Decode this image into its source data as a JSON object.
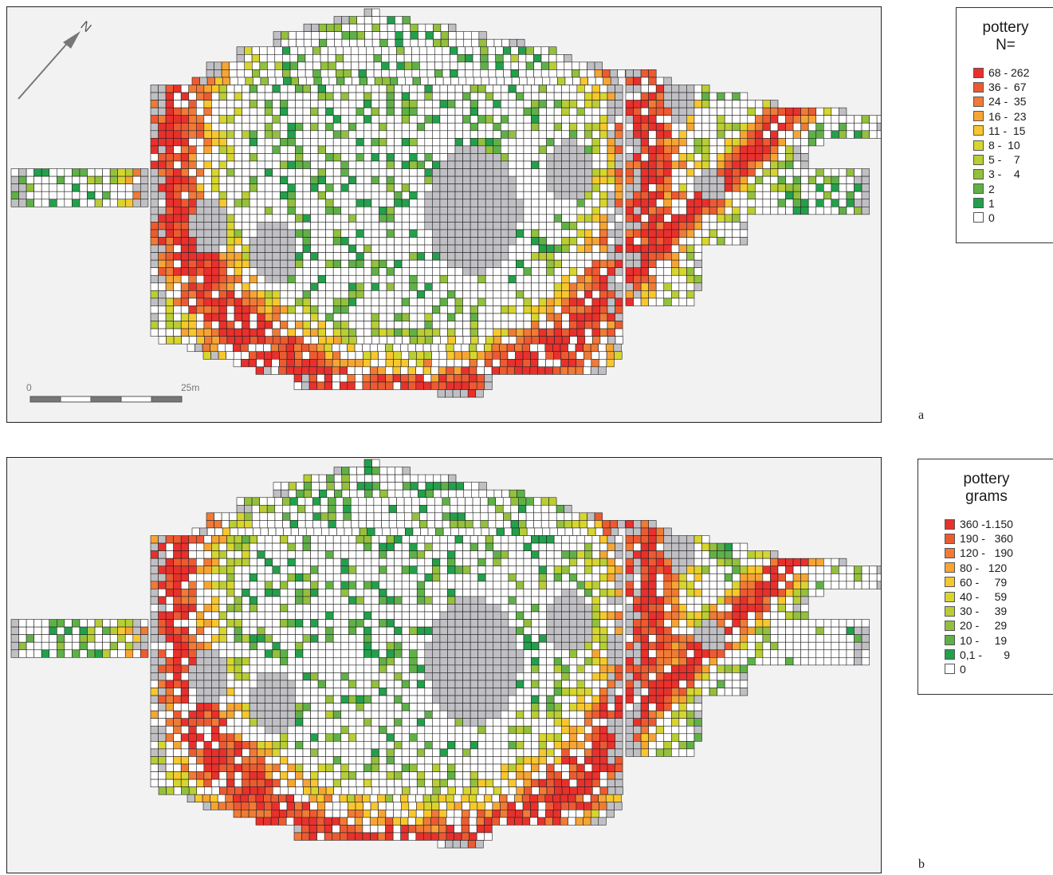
{
  "figure": {
    "panel_a_letter": "a",
    "panel_b_letter": "b"
  },
  "north_arrow": {
    "label": "N",
    "icon": "north-arrow-icon"
  },
  "scale_bar": {
    "start_label": "0",
    "end_label": "25m"
  },
  "legend_a": {
    "title_line1": "pottery",
    "title_line2": "N=",
    "classes": [
      {
        "label": "68 - 262",
        "color": "#e8302c"
      },
      {
        "label": "36 -  67",
        "color": "#ed5a31"
      },
      {
        "label": "24 -  35",
        "color": "#f07a36"
      },
      {
        "label": "16 -  23",
        "color": "#f6a534"
      },
      {
        "label": "11 -  15",
        "color": "#f8c72d"
      },
      {
        "label": "8 -  10",
        "color": "#d8d52f"
      },
      {
        "label": "5 -    7",
        "color": "#b9cd35"
      },
      {
        "label": "3 -    4",
        "color": "#93c03d"
      },
      {
        "label": "2",
        "color": "#5fb147"
      },
      {
        "label": "1",
        "color": "#22a04b"
      },
      {
        "label": "0",
        "color": "#ffffff"
      }
    ]
  },
  "legend_b": {
    "title_line1": "pottery",
    "title_line2": "grams",
    "classes": [
      {
        "label": "360 -1.150",
        "color": "#e8302c"
      },
      {
        "label": "190 -   360",
        "color": "#ed5a31"
      },
      {
        "label": "120 -   190",
        "color": "#f07a36"
      },
      {
        "label": "80 -   120",
        "color": "#f6a534"
      },
      {
        "label": "60 -     79",
        "color": "#f8c72d"
      },
      {
        "label": "40 -     59",
        "color": "#d8d52f"
      },
      {
        "label": "30 -     39",
        "color": "#b9cd35"
      },
      {
        "label": "20 -     29",
        "color": "#93c03d"
      },
      {
        "label": "10 -     19",
        "color": "#5fb147"
      },
      {
        "label": "0,1 -       9",
        "color": "#22a04b"
      },
      {
        "label": "0",
        "color": "#ffffff"
      }
    ]
  },
  "colors": {
    "unexcavated": "#c0c0c4",
    "panel_background": "#f2f2f2",
    "cell_border": "#222222"
  }
}
